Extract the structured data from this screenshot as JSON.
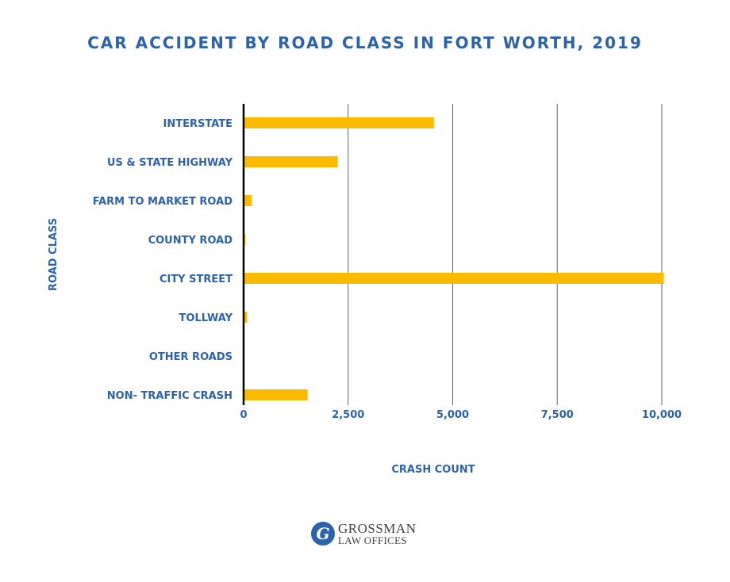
{
  "colors": {
    "title": "#2c63ad",
    "label": "#2c63ad",
    "bar": "#fcbb00",
    "grid": "#666666",
    "axis": "#000000",
    "logo_mark": "#2c63ad",
    "logo_text": "#3f3f3f"
  },
  "logo": {
    "mark_glyph": "G",
    "line1": "GROSSMAN",
    "line2": "LAW OFFICES",
    "icon": "grossman-g-monogram-icon"
  },
  "chart_data": {
    "type": "bar",
    "orientation": "horizontal",
    "title": "CAR ACCIDENT BY ROAD CLASS IN FORT WORTH, 2019",
    "xlabel": "CRASH COUNT",
    "ylabel": "ROAD CLASS",
    "categories": [
      "INTERSTATE",
      "US & STATE HIGHWAY",
      "FARM TO MARKET ROAD",
      "COUNTY ROAD",
      "CITY STREET",
      "TOLLWAY",
      "OTHER ROADS",
      "NON- TRAFFIC CRASH"
    ],
    "values": [
      4550,
      2250,
      190,
      40,
      10050,
      80,
      0,
      1530
    ],
    "xlim": [
      0,
      10000
    ],
    "xticks": [
      0,
      2500,
      5000,
      7500,
      10000
    ],
    "xtick_labels": [
      "0",
      "2,500",
      "5,000",
      "7,500",
      "10,000"
    ],
    "grid": "vertical",
    "legend": "none"
  }
}
